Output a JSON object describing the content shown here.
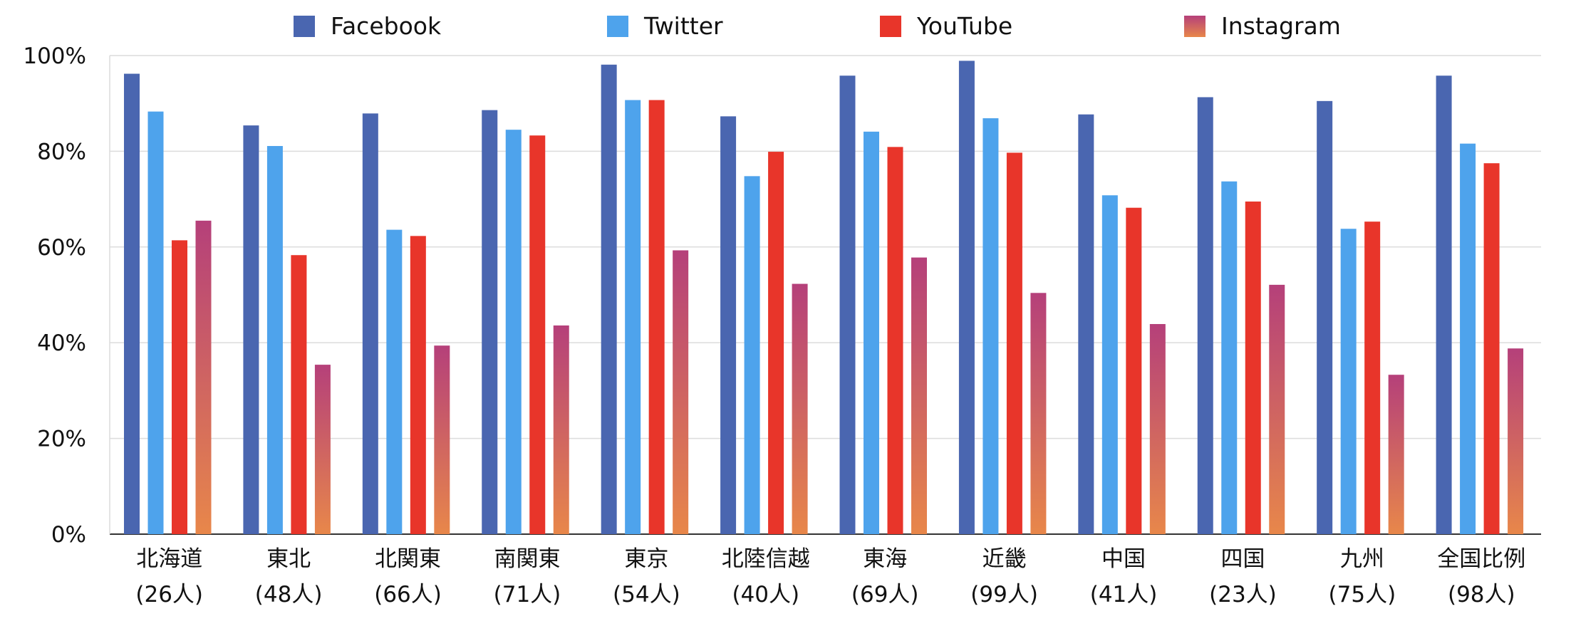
{
  "chart_data": {
    "type": "bar",
    "title": "",
    "xlabel": "",
    "ylabel": "",
    "ylim": [
      0,
      100
    ],
    "y_ticks": [
      "0%",
      "20%",
      "40%",
      "60%",
      "80%",
      "100%"
    ],
    "y_tick_values": [
      0,
      20,
      40,
      60,
      80,
      100
    ],
    "grid": true,
    "legend_position": "top",
    "categories": [
      {
        "name": "北海道",
        "count": "(26人)"
      },
      {
        "name": "東北",
        "count": "(48人)"
      },
      {
        "name": "北関東",
        "count": "(66人)"
      },
      {
        "name": "南関東",
        "count": "(71人)"
      },
      {
        "name": "東京",
        "count": "(54人)"
      },
      {
        "name": "北陸信越",
        "count": "(40人)"
      },
      {
        "name": "東海",
        "count": "(69人)"
      },
      {
        "name": "近畿",
        "count": "(99人)"
      },
      {
        "name": "中国",
        "count": "(41人)"
      },
      {
        "name": "四国",
        "count": "(23人)"
      },
      {
        "name": "九州",
        "count": "(75人)"
      },
      {
        "name": "全国比例",
        "count": "(98人)"
      }
    ],
    "series": [
      {
        "name": "Facebook",
        "color": "#4a66b0",
        "values": [
          96.2,
          85.4,
          87.9,
          88.6,
          98.1,
          87.3,
          95.8,
          98.9,
          87.7,
          91.3,
          90.5,
          95.8
        ]
      },
      {
        "name": "Twitter",
        "color": "#4ea3ec",
        "values": [
          88.3,
          81.1,
          63.6,
          84.5,
          90.7,
          74.8,
          84.1,
          86.9,
          70.8,
          73.7,
          63.8,
          81.6
        ]
      },
      {
        "name": "YouTube",
        "color": "#e8352a",
        "values": [
          61.4,
          58.3,
          62.3,
          83.3,
          90.7,
          79.9,
          80.9,
          79.7,
          68.2,
          69.5,
          65.3,
          77.5
        ]
      },
      {
        "name": "Instagram",
        "color": "#b5407a",
        "color_bottom": "#e8874a",
        "values": [
          65.5,
          35.4,
          39.4,
          43.6,
          59.3,
          52.3,
          57.8,
          50.4,
          43.9,
          52.1,
          33.3,
          38.8
        ]
      }
    ]
  }
}
